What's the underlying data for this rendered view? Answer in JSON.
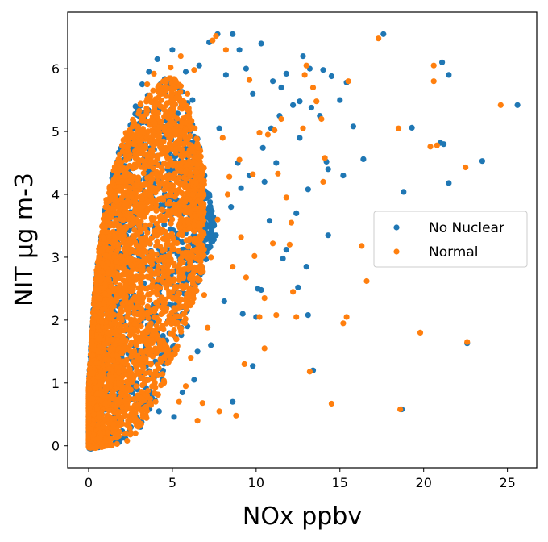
{
  "chart_data": {
    "type": "scatter",
    "title": "",
    "xlabel": "NOx ppbv",
    "ylabel": "NIT µg m-3",
    "xlim": [
      -1.25,
      26.75
    ],
    "ylim": [
      -0.35,
      6.9
    ],
    "xticks": [
      0,
      5,
      10,
      15,
      20,
      25
    ],
    "yticks": [
      0,
      1,
      2,
      3,
      4,
      5,
      6
    ],
    "grid": false,
    "legend_position": "center-right",
    "series": [
      {
        "name": "No Nuclear",
        "color": "#1f77b4",
        "points": [
          [
            25.6,
            5.42
          ],
          [
            23.5,
            4.53
          ],
          [
            21.5,
            5.9
          ],
          [
            21.1,
            6.1
          ],
          [
            21.2,
            4.8
          ],
          [
            21.0,
            4.82
          ],
          [
            21.5,
            4.18
          ],
          [
            19.3,
            5.06
          ],
          [
            18.8,
            4.04
          ],
          [
            17.6,
            6.55
          ],
          [
            16.4,
            4.56
          ],
          [
            15.8,
            5.08
          ],
          [
            15.4,
            5.78
          ],
          [
            15.2,
            4.3
          ],
          [
            15.0,
            5.5
          ],
          [
            14.5,
            5.88
          ],
          [
            14.3,
            4.4
          ],
          [
            14.2,
            4.52
          ],
          [
            14.0,
            5.98
          ],
          [
            14.3,
            3.35
          ],
          [
            13.8,
            5.25
          ],
          [
            13.3,
            5.38
          ],
          [
            13.2,
            6.0
          ],
          [
            13.1,
            4.08
          ],
          [
            13.0,
            2.85
          ],
          [
            12.8,
            6.2
          ],
          [
            12.6,
            4.9
          ],
          [
            12.4,
            3.7
          ],
          [
            12.6,
            5.48
          ],
          [
            12.5,
            2.52
          ],
          [
            12.2,
            5.42
          ],
          [
            11.8,
            5.92
          ],
          [
            11.5,
            5.7
          ],
          [
            11.2,
            4.5
          ],
          [
            11.0,
            5.8
          ],
          [
            10.8,
            3.58
          ],
          [
            10.5,
            4.2
          ],
          [
            10.3,
            6.4
          ],
          [
            10.1,
            2.5
          ],
          [
            9.8,
            5.6
          ],
          [
            9.4,
            6.0
          ],
          [
            9.0,
            6.3
          ],
          [
            8.6,
            6.55
          ],
          [
            8.2,
            5.9
          ],
          [
            7.7,
            6.55
          ],
          [
            7.2,
            6.42
          ],
          [
            6.6,
            6.05
          ],
          [
            6.2,
            5.5
          ],
          [
            5.8,
            5.95
          ],
          [
            5.5,
            4.3
          ],
          [
            5.0,
            6.3
          ],
          [
            4.6,
            5.8
          ],
          [
            4.1,
            6.15
          ],
          [
            3.9,
            5.2
          ],
          [
            3.6,
            5.95
          ],
          [
            3.2,
            5.75
          ],
          [
            2.8,
            5.4
          ],
          [
            2.5,
            5.1
          ],
          [
            13.4,
            1.2
          ],
          [
            18.7,
            0.58
          ],
          [
            8.6,
            0.7
          ],
          [
            5.1,
            0.46
          ],
          [
            22.6,
            1.63
          ],
          [
            8.1,
            2.3
          ],
          [
            9.2,
            2.1
          ],
          [
            9.8,
            1.27
          ],
          [
            10.0,
            2.05
          ],
          [
            10.3,
            2.48
          ],
          [
            11.6,
            2.98
          ],
          [
            11.8,
            3.12
          ],
          [
            13.1,
            2.08
          ],
          [
            6.5,
            1.5
          ],
          [
            7.3,
            1.6
          ],
          [
            6.1,
            2.7
          ],
          [
            7.6,
            3.35
          ],
          [
            8.5,
            3.8
          ],
          [
            9.1,
            4.1
          ],
          [
            9.6,
            4.3
          ],
          [
            10.4,
            4.74
          ],
          [
            10.9,
            5.05
          ],
          [
            11.4,
            5.25
          ],
          [
            8.9,
            4.5
          ],
          [
            7.8,
            5.05
          ],
          [
            6.9,
            4.3
          ],
          [
            4.4,
            1.05
          ],
          [
            3.8,
            0.75
          ],
          [
            4.2,
            0.55
          ],
          [
            5.6,
            0.85
          ],
          [
            6.3,
            1.05
          ],
          [
            5.9,
            1.9
          ],
          [
            4.8,
            2.25
          ],
          [
            5.3,
            3.05
          ],
          [
            3.4,
            1.62
          ],
          [
            2.9,
            0.9
          ],
          [
            3.1,
            0.3
          ],
          [
            2.2,
            0.12
          ],
          [
            1.6,
            0.05
          ],
          [
            0.9,
            0.02
          ],
          [
            0.4,
            0.0
          ],
          [
            1.3,
            2.8
          ],
          [
            1.1,
            1.5
          ],
          [
            0.7,
            3.0
          ],
          [
            2.1,
            3.9
          ],
          [
            2.6,
            4.7
          ],
          [
            1.8,
            4.4
          ]
        ]
      },
      {
        "name": "Normal",
        "color": "#ff7f0e",
        "points": [
          [
            24.6,
            5.42
          ],
          [
            22.5,
            4.43
          ],
          [
            22.6,
            1.65
          ],
          [
            20.6,
            6.05
          ],
          [
            20.6,
            5.8
          ],
          [
            20.4,
            4.76
          ],
          [
            20.8,
            4.78
          ],
          [
            19.8,
            1.8
          ],
          [
            18.6,
            0.58
          ],
          [
            18.5,
            5.05
          ],
          [
            17.3,
            6.48
          ],
          [
            16.6,
            2.62
          ],
          [
            16.3,
            3.18
          ],
          [
            15.5,
            5.8
          ],
          [
            15.4,
            2.05
          ],
          [
            15.2,
            1.95
          ],
          [
            14.5,
            0.67
          ],
          [
            14.1,
            4.58
          ],
          [
            14.0,
            4.2
          ],
          [
            13.9,
            5.2
          ],
          [
            13.6,
            5.48
          ],
          [
            13.4,
            5.7
          ],
          [
            13.2,
            1.18
          ],
          [
            13.0,
            6.05
          ],
          [
            12.9,
            5.9
          ],
          [
            12.8,
            5.05
          ],
          [
            12.2,
            2.45
          ],
          [
            12.1,
            3.55
          ],
          [
            12.0,
            3.2
          ],
          [
            11.8,
            3.95
          ],
          [
            11.5,
            5.2
          ],
          [
            11.3,
            4.33
          ],
          [
            11.1,
            5.02
          ],
          [
            11.0,
            3.22
          ],
          [
            10.5,
            2.35
          ],
          [
            10.2,
            4.98
          ],
          [
            9.9,
            3.02
          ],
          [
            9.6,
            5.82
          ],
          [
            9.4,
            2.68
          ],
          [
            9.1,
            3.32
          ],
          [
            8.8,
            0.48
          ],
          [
            8.4,
            4.28
          ],
          [
            8.2,
            6.3
          ],
          [
            8.0,
            4.9
          ],
          [
            7.8,
            0.55
          ],
          [
            7.6,
            6.52
          ],
          [
            7.4,
            6.45
          ],
          [
            7.1,
            1.88
          ],
          [
            6.8,
            0.68
          ],
          [
            6.5,
            0.4
          ],
          [
            6.3,
            5.98
          ],
          [
            5.9,
            5.6
          ],
          [
            5.5,
            6.2
          ],
          [
            5.2,
            5.8
          ],
          [
            4.9,
            6.02
          ],
          [
            4.6,
            5.7
          ],
          [
            4.3,
            5.4
          ],
          [
            3.9,
            5.92
          ],
          [
            3.5,
            5.75
          ],
          [
            3.1,
            5.45
          ],
          [
            2.7,
            5.1
          ],
          [
            9.3,
            1.3
          ],
          [
            10.2,
            2.05
          ],
          [
            10.5,
            1.55
          ],
          [
            11.2,
            2.08
          ],
          [
            12.4,
            2.05
          ],
          [
            8.6,
            2.85
          ],
          [
            6.9,
            2.4
          ],
          [
            7.3,
            3.0
          ],
          [
            7.7,
            3.6
          ],
          [
            8.3,
            4.0
          ],
          [
            9.0,
            4.55
          ],
          [
            9.8,
            4.32
          ],
          [
            10.7,
            4.95
          ],
          [
            5.4,
            0.7
          ],
          [
            5.8,
            0.95
          ],
          [
            6.1,
            1.4
          ],
          [
            4.5,
            1.0
          ],
          [
            4.0,
            0.7
          ],
          [
            4.4,
            2.2
          ],
          [
            5.1,
            2.9
          ],
          [
            5.6,
            3.35
          ],
          [
            6.2,
            4.0
          ],
          [
            6.7,
            4.6
          ],
          [
            3.6,
            1.45
          ],
          [
            3.2,
            0.55
          ],
          [
            2.8,
            0.2
          ],
          [
            2.3,
            0.08
          ],
          [
            1.7,
            0.03
          ],
          [
            1.1,
            0.0
          ],
          [
            0.5,
            -0.02
          ],
          [
            1.2,
            1.8
          ],
          [
            0.8,
            2.9
          ],
          [
            1.5,
            3.5
          ],
          [
            2.0,
            4.2
          ],
          [
            2.4,
            4.6
          ],
          [
            3.0,
            4.85
          ]
        ]
      }
    ],
    "dense_region": {
      "description_hidden": true,
      "x_range": [
        0.0,
        7.5
      ],
      "y_max_curve": [
        [
          0.0,
          0.9
        ],
        [
          0.2,
          1.9
        ],
        [
          0.4,
          2.6
        ],
        [
          0.6,
          3.1
        ],
        [
          0.8,
          3.5
        ],
        [
          1.0,
          3.85
        ],
        [
          1.3,
          4.2
        ],
        [
          1.6,
          4.5
        ],
        [
          2.0,
          4.85
        ],
        [
          2.5,
          5.15
        ],
        [
          3.0,
          5.4
        ],
        [
          3.5,
          5.6
        ],
        [
          4.0,
          5.75
        ],
        [
          4.5,
          5.85
        ],
        [
          5.0,
          5.9
        ],
        [
          5.5,
          5.75
        ],
        [
          6.0,
          5.4
        ],
        [
          6.5,
          4.9
        ],
        [
          7.0,
          4.3
        ],
        [
          7.5,
          3.6
        ]
      ],
      "y_min_curve": [
        [
          0.0,
          -0.05
        ],
        [
          0.5,
          -0.05
        ],
        [
          1.0,
          -0.02
        ],
        [
          1.5,
          0.0
        ],
        [
          2.0,
          0.05
        ],
        [
          2.5,
          0.12
        ],
        [
          3.0,
          0.25
        ],
        [
          3.5,
          0.45
        ],
        [
          4.0,
          0.7
        ],
        [
          4.5,
          1.0
        ],
        [
          5.0,
          1.35
        ],
        [
          5.5,
          1.7
        ],
        [
          6.0,
          2.1
        ],
        [
          6.5,
          2.5
        ],
        [
          7.0,
          2.9
        ],
        [
          7.5,
          3.3
        ]
      ]
    }
  }
}
